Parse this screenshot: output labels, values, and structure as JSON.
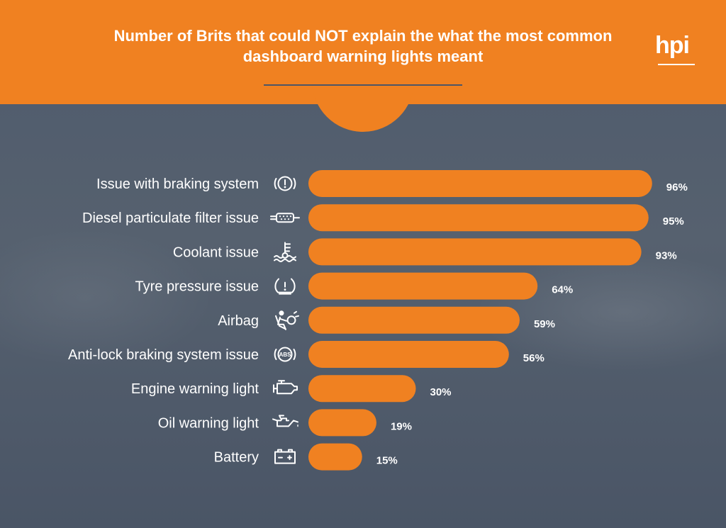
{
  "header": {
    "title": "Number of Brits that could NOT explain the what the most common dashboard warning lights meant",
    "logo": "hpi"
  },
  "colors": {
    "header": "#f08121",
    "bar": "#f08121",
    "background": "#4e5a6c"
  },
  "chart_data": {
    "type": "bar",
    "orientation": "horizontal",
    "title": "Number of Brits that could NOT explain the what the most common dashboard warning lights meant",
    "categories": [
      "Issue with braking system",
      "Diesel particulate filter issue",
      "Coolant issue",
      "Tyre pressure issue",
      "Airbag",
      "Anti-lock braking system issue",
      "Engine warning light",
      "Oil warning light",
      "Battery"
    ],
    "values": [
      96,
      95,
      93,
      64,
      59,
      56,
      30,
      19,
      15
    ],
    "value_labels": [
      "96%",
      "95%",
      "93%",
      "64%",
      "59%",
      "56%",
      "30%",
      "19%",
      "15%"
    ],
    "icons": [
      "brake-warning-icon",
      "diesel-particulate-filter-icon",
      "coolant-temperature-icon",
      "tyre-pressure-icon",
      "airbag-icon",
      "abs-icon",
      "engine-warning-icon",
      "oil-can-icon",
      "battery-icon"
    ],
    "abs_icon_text": "ABS",
    "xlim": [
      0,
      100
    ],
    "grid": false,
    "legend": "none"
  }
}
